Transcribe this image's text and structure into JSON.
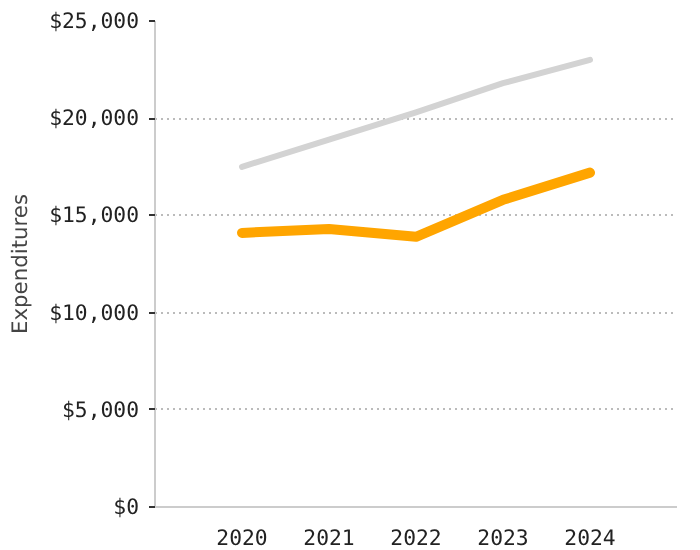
{
  "chart_data": {
    "type": "line",
    "ylabel": "Expenditures",
    "categories": [
      "2020",
      "2021",
      "2022",
      "2023",
      "2024"
    ],
    "series": [
      {
        "color": "#d3d3d3",
        "values": [
          17500,
          18900,
          20300,
          21800,
          23000
        ]
      },
      {
        "color": "#ffa500",
        "values": [
          14100,
          14300,
          13900,
          15800,
          17200
        ]
      }
    ],
    "ylim": [
      0,
      25000
    ],
    "yticks": [
      {
        "value": 0,
        "label": "$0"
      },
      {
        "value": 5000,
        "label": "$5,000"
      },
      {
        "value": 10000,
        "label": "$10,000"
      },
      {
        "value": 15000,
        "label": "$15,000"
      },
      {
        "value": 20000,
        "label": "$20,000"
      },
      {
        "value": 25000,
        "label": "$25,000"
      }
    ],
    "grid": "y"
  }
}
